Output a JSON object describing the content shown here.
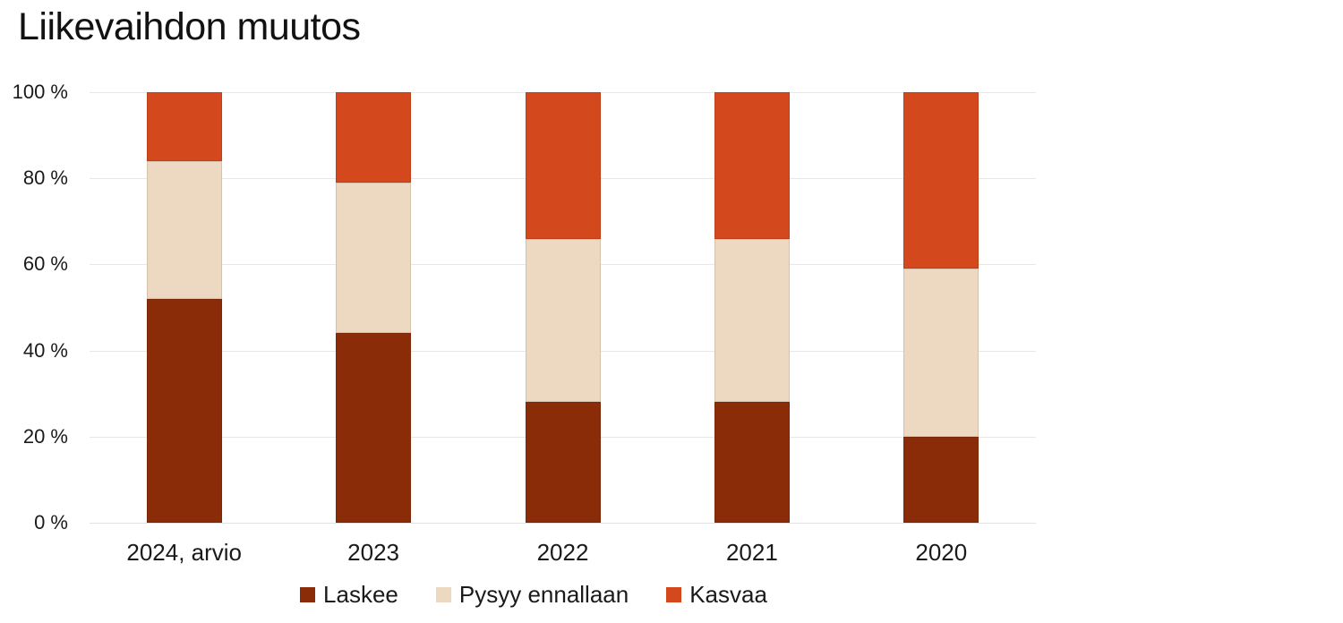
{
  "chart_data": {
    "type": "bar",
    "stacked": true,
    "title": "Liikevaihdon muutos",
    "categories": [
      "2024, arvio",
      "2023",
      "2022",
      "2021",
      "2020"
    ],
    "series": [
      {
        "name": "Laskee",
        "color": "#8B2C08",
        "values": [
          52,
          44,
          28,
          28,
          20
        ]
      },
      {
        "name": "Pysyy ennallaan",
        "color": "#EDD8C2",
        "values": [
          32,
          35,
          38,
          38,
          39
        ]
      },
      {
        "name": "Kasvaa",
        "color": "#D3481C",
        "values": [
          16,
          21,
          34,
          34,
          41
        ]
      }
    ],
    "xlabel": "",
    "ylabel": "",
    "ylim": [
      0,
      100
    ],
    "yticks": [
      0,
      20,
      40,
      60,
      80,
      100
    ],
    "ytick_labels": [
      "0 %",
      "20 %",
      "40 %",
      "60 %",
      "80 %",
      "100 %"
    ],
    "grid": "horizontal",
    "legend_position": "bottom-center"
  },
  "colors": {
    "text": "#1A1A1A",
    "title": "#121212",
    "grid": "#E8E8E8",
    "background": "#FFFFFF"
  }
}
